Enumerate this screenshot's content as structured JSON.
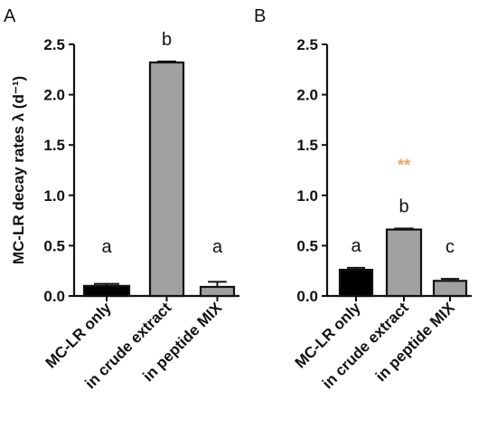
{
  "chart_data": [
    {
      "type": "bar",
      "panel": "A",
      "categories": [
        "MC-LR only",
        "in crude extract",
        "in peptide MIX"
      ],
      "values": [
        0.1,
        2.32,
        0.09
      ],
      "errors": [
        0.02,
        0.01,
        0.05
      ],
      "letters": [
        "a",
        "b",
        "a"
      ],
      "bar_colors": [
        "#000000",
        "#a0a0a0",
        "#a0a0a0"
      ],
      "annotation": "",
      "ylabel": "MC-LR decay rates λ (d⁻¹)",
      "ylim": [
        0,
        2.5
      ],
      "yticks": [
        "0.0",
        "0.5",
        "1.0",
        "1.5",
        "2.0",
        "2.5"
      ],
      "grid": false
    },
    {
      "type": "bar",
      "panel": "B",
      "categories": [
        "MC-LR only",
        "in crude extract",
        "in peptide MIX"
      ],
      "values": [
        0.26,
        0.66,
        0.15
      ],
      "errors": [
        0.02,
        0.01,
        0.02
      ],
      "letters": [
        "a",
        "b",
        "c"
      ],
      "bar_colors": [
        "#000000",
        "#a0a0a0",
        "#a0a0a0"
      ],
      "annotation": "**",
      "annotation_color": "#f0a060",
      "ylabel": "",
      "ylim": [
        0,
        2.5
      ],
      "yticks": [
        "0.0",
        "0.5",
        "1.0",
        "1.5",
        "2.0",
        "2.5"
      ],
      "grid": false
    }
  ]
}
